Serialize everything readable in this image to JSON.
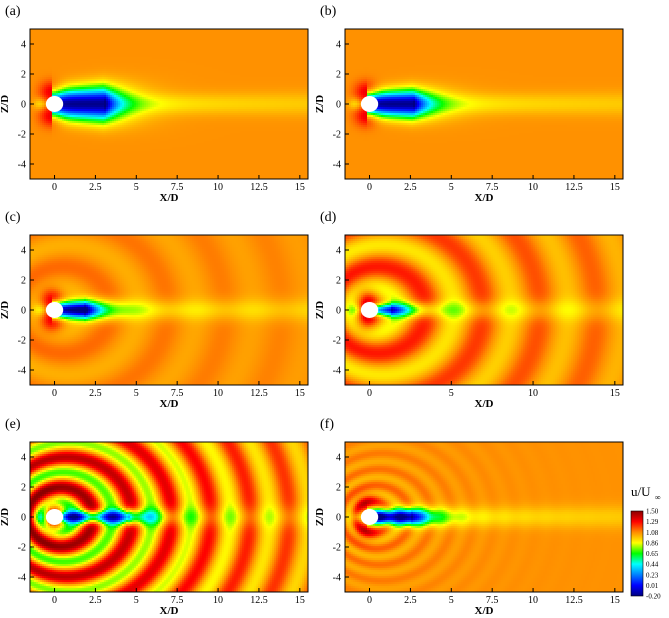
{
  "chart_data": [
    {
      "type": "heatmap",
      "label": "(a)",
      "xlabel": "X/D",
      "ylabel": "Z/D",
      "xticks": [
        "0",
        "2.5",
        "5",
        "7.5",
        "10",
        "12.5",
        "15"
      ],
      "yticks": [
        "4",
        "2",
        "0",
        "-2",
        "-4"
      ],
      "xlim": [
        -1.5,
        15.5
      ],
      "ylim": [
        -5,
        5
      ],
      "cylinder": {
        "x": 0,
        "z": 0,
        "diameter": 1
      },
      "wake": {
        "deficit": "strong",
        "recirculation_length": 3.0,
        "width": 0.9,
        "waves": "none"
      }
    },
    {
      "type": "heatmap",
      "label": "(b)",
      "xlabel": "X/D",
      "ylabel": "Z/D",
      "xticks": [
        "0",
        "2.5",
        "5",
        "7.5",
        "10",
        "12.5",
        "15"
      ],
      "yticks": [
        "4",
        "2",
        "0",
        "-2",
        "-4"
      ],
      "xlim": [
        -1.5,
        15.5
      ],
      "ylim": [
        -5,
        5
      ],
      "cylinder": {
        "x": 0,
        "z": 0,
        "diameter": 1
      },
      "wake": {
        "deficit": "strong",
        "recirculation_length": 2.6,
        "width": 0.75,
        "waves": "none"
      }
    },
    {
      "type": "heatmap",
      "label": "(c)",
      "xlabel": "X/D",
      "ylabel": "Z/D",
      "xticks": [
        "0",
        "2.5",
        "5",
        "7.5",
        "10",
        "12.5",
        "15"
      ],
      "yticks": [
        "4",
        "2",
        "0",
        "-2",
        "-4"
      ],
      "xlim": [
        -1.5,
        15.5
      ],
      "ylim": [
        -5,
        5
      ],
      "cylinder": {
        "x": 0,
        "z": 0,
        "diameter": 1
      },
      "wake": {
        "deficit": "strong",
        "recirculation_length": 1.8,
        "width": 0.5,
        "waves": "weak"
      }
    },
    {
      "type": "heatmap",
      "label": "(d)",
      "xlabel": "X/D",
      "ylabel": "Z/D",
      "xticks": [
        "0",
        "5",
        "10",
        "15"
      ],
      "yticks": [
        "4",
        "2",
        "0",
        "-2",
        "-4"
      ],
      "xlim": [
        -1.5,
        15.5
      ],
      "ylim": [
        -5,
        5
      ],
      "cylinder": {
        "x": 0,
        "z": 0,
        "diameter": 1
      },
      "wake": {
        "deficit": "medium",
        "recirculation_length": 1.3,
        "width": 0.35,
        "waves": "moderate"
      }
    },
    {
      "type": "heatmap",
      "label": "(e)",
      "xlabel": "X/D",
      "ylabel": "Z/D",
      "xticks": [
        "0",
        "2.5",
        "5",
        "7.5",
        "10",
        "12.5",
        "15"
      ],
      "yticks": [
        "4",
        "2",
        "0",
        "-2",
        "-4"
      ],
      "xlim": [
        -1.5,
        15.5
      ],
      "ylim": [
        -5,
        5
      ],
      "cylinder": {
        "x": 0,
        "z": 0,
        "diameter": 1
      },
      "wake": {
        "deficit": "medium",
        "recirculation_length": 4.5,
        "width": 0.35,
        "waves": "strong"
      }
    },
    {
      "type": "heatmap",
      "label": "(f)",
      "xlabel": "X/D",
      "ylabel": "Z/D",
      "xticks": [
        "0",
        "2.5",
        "5",
        "7.5",
        "10",
        "12.5",
        "15"
      ],
      "yticks": [
        "4",
        "2",
        "0",
        "-2",
        "-4"
      ],
      "xlim": [
        -1.5,
        15.5
      ],
      "ylim": [
        -5,
        5
      ],
      "cylinder": {
        "x": 0,
        "z": 0,
        "diameter": 1
      },
      "wake": {
        "deficit": "strong",
        "recirculation_length": 2.5,
        "width": 0.45,
        "waves": "fine"
      }
    }
  ],
  "colorbar": {
    "title_main": "u/U",
    "title_sub": "∞",
    "levels": [
      "1.50",
      "1.29",
      "1.08",
      "0.86",
      "0.65",
      "0.44",
      "0.23",
      "0.01",
      "-0.20"
    ],
    "colors": [
      "#8b0000",
      "#ff0000",
      "#ff8c00",
      "#ffff00",
      "#00ff00",
      "#00ffff",
      "#0080ff",
      "#0000ff",
      "#000080"
    ]
  }
}
